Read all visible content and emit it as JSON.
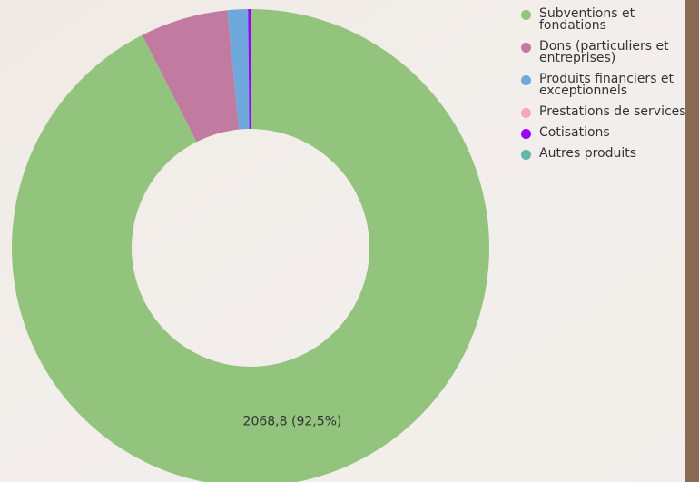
{
  "chart_data": {
    "type": "donut",
    "categories": [
      "Subventions et fondations",
      "Dons (particuliers et entreprises)",
      "Produits financiers et exceptionnels",
      "Prestations de services",
      "Cotisations",
      "Autres produits"
    ],
    "values": [
      2068.8,
      133,
      31,
      0,
      3.7,
      0
    ],
    "value_labels": [
      "2068,8 (92,5%)",
      null,
      null,
      null,
      null,
      null
    ],
    "colors": [
      "#93c47d",
      "#c27ba0",
      "#6fa8dc",
      "#f4a7b9",
      "#9900ff",
      "#5fb8a8"
    ],
    "legend": "top-right"
  }
}
